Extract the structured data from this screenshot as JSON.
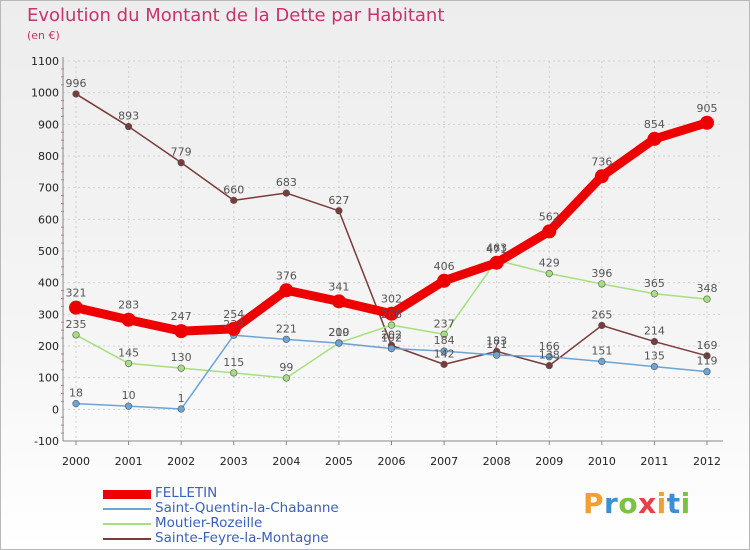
{
  "header": {
    "title": "Evolution du Montant de la Dette par Habitant",
    "unit": "(en €)"
  },
  "brand": {
    "letters": [
      "P",
      "r",
      "o",
      "x",
      "i",
      "t",
      "i"
    ],
    "colors": [
      "#f0a030",
      "#3a8fd6",
      "#7cc242",
      "#e8404a",
      "#f0a030",
      "#3a8fd6",
      "#7cc242"
    ]
  },
  "chart_data": {
    "type": "line",
    "categories": [
      "2000",
      "2001",
      "2002",
      "2003",
      "2004",
      "2005",
      "2006",
      "2007",
      "2008",
      "2009",
      "2010",
      "2011",
      "2012"
    ],
    "ylim": [
      -100,
      1100
    ],
    "yticks": [
      "-100",
      "0",
      "100",
      "200",
      "300",
      "400",
      "500",
      "600",
      "700",
      "800",
      "900",
      "1000",
      "1100"
    ],
    "grid": true,
    "legend_position": "bottom-left",
    "series": [
      {
        "name": "FELLETIN",
        "color": "#ee0000",
        "values": [
          321,
          283,
          247,
          254,
          376,
          341,
          302,
          406,
          463,
          562,
          736,
          854,
          905
        ],
        "labels": [
          "321",
          "283",
          "247",
          "254",
          "376",
          "341",
          "302",
          "406",
          "463",
          "562",
          "736",
          "854",
          "905"
        ]
      },
      {
        "name": "Saint-Quentin-la-Chabanne",
        "color": "#6ba4d6",
        "values": [
          18,
          10,
          1,
          234,
          221,
          209,
          192,
          184,
          171,
          166,
          151,
          135,
          119
        ],
        "labels": [
          "18",
          "10",
          "1",
          "234",
          "221",
          "209",
          "192",
          "184",
          "171",
          "166",
          "151",
          "135",
          "119"
        ]
      },
      {
        "name": "Moutier-Rozeille",
        "color": "#a6e07e",
        "values": [
          235,
          145,
          130,
          115,
          99,
          210,
          266,
          237,
          471,
          429,
          396,
          365,
          348
        ],
        "labels": [
          "235",
          "145",
          "130",
          "115",
          "99",
          "210",
          "266",
          "237",
          "471",
          "429",
          "396",
          "365",
          "348"
        ]
      },
      {
        "name": "Sainte-Feyre-la-Montagne",
        "color": "#7a3b3b",
        "values": [
          996,
          893,
          779,
          660,
          683,
          627,
          202,
          142,
          183,
          138,
          265,
          214,
          169
        ],
        "labels": [
          "996",
          "893",
          "779",
          "660",
          "683",
          "627",
          "202",
          "142",
          "183",
          "138",
          "265",
          "214",
          "169"
        ]
      }
    ]
  }
}
